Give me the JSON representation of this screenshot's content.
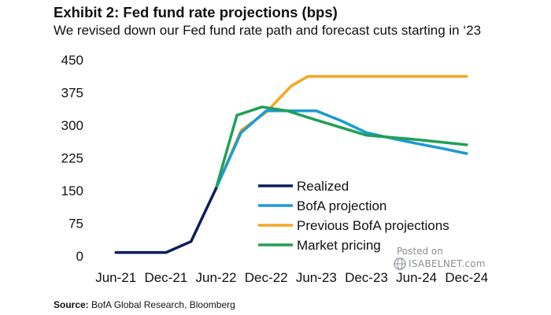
{
  "header": {
    "title": "Exhibit 2: Fed fund rate projections (bps)",
    "subtitle": "We revised down our Fed fund rate path and forecast cuts starting in ‘23"
  },
  "source": {
    "label": "Source:",
    "text": "BofA Global Research, Bloomberg"
  },
  "watermark": {
    "posted": "Posted on",
    "site": "ISABELNET.com"
  },
  "chart_data": {
    "type": "line",
    "title": "Exhibit 2: Fed fund rate projections (bps)",
    "subtitle": "We revised down our Fed fund rate path and forecast cuts starting in ‘23",
    "xlabel": "",
    "ylabel": "",
    "x_tick_labels": [
      "Jun-21",
      "Dec-21",
      "Jun-22",
      "Dec-22",
      "Jun-23",
      "Dec-23",
      "Jun-24",
      "Dec-24"
    ],
    "x_tick_months": [
      0,
      6,
      12,
      18,
      24,
      30,
      36,
      42
    ],
    "x_axis_note": "x values are months since Jun-21",
    "xlim": [
      -2,
      44
    ],
    "ylim": [
      0,
      450
    ],
    "y_ticks": [
      0,
      75,
      150,
      225,
      300,
      375,
      450
    ],
    "grid": false,
    "legend_position": "center-right",
    "series": [
      {
        "name": "Realized",
        "color": "#0a1f5c",
        "points": [
          [
            0,
            8
          ],
          [
            6,
            8
          ],
          [
            9,
            33
          ],
          [
            12,
            155
          ]
        ]
      },
      {
        "name": "BofA projection",
        "color": "#1b9ad6",
        "points": [
          [
            12,
            155
          ],
          [
            15,
            283
          ],
          [
            18,
            333
          ],
          [
            21,
            333
          ],
          [
            24,
            333
          ],
          [
            27,
            310
          ],
          [
            30,
            283
          ],
          [
            33,
            270
          ],
          [
            36,
            258
          ],
          [
            39,
            247
          ],
          [
            42,
            235
          ]
        ]
      },
      {
        "name": "Previous BofA projections",
        "color": "#f5a623",
        "points": [
          [
            12,
            155
          ],
          [
            15,
            288
          ],
          [
            18,
            330
          ],
          [
            21,
            390
          ],
          [
            23,
            412
          ],
          [
            30,
            412
          ],
          [
            36,
            412
          ],
          [
            42,
            412
          ]
        ]
      },
      {
        "name": "Market pricing",
        "color": "#1fa055",
        "points": [
          [
            12,
            155
          ],
          [
            14.5,
            323
          ],
          [
            17.5,
            342
          ],
          [
            20.5,
            333
          ],
          [
            24,
            312
          ],
          [
            30,
            277
          ],
          [
            36,
            267
          ],
          [
            42,
            255
          ]
        ]
      }
    ]
  }
}
